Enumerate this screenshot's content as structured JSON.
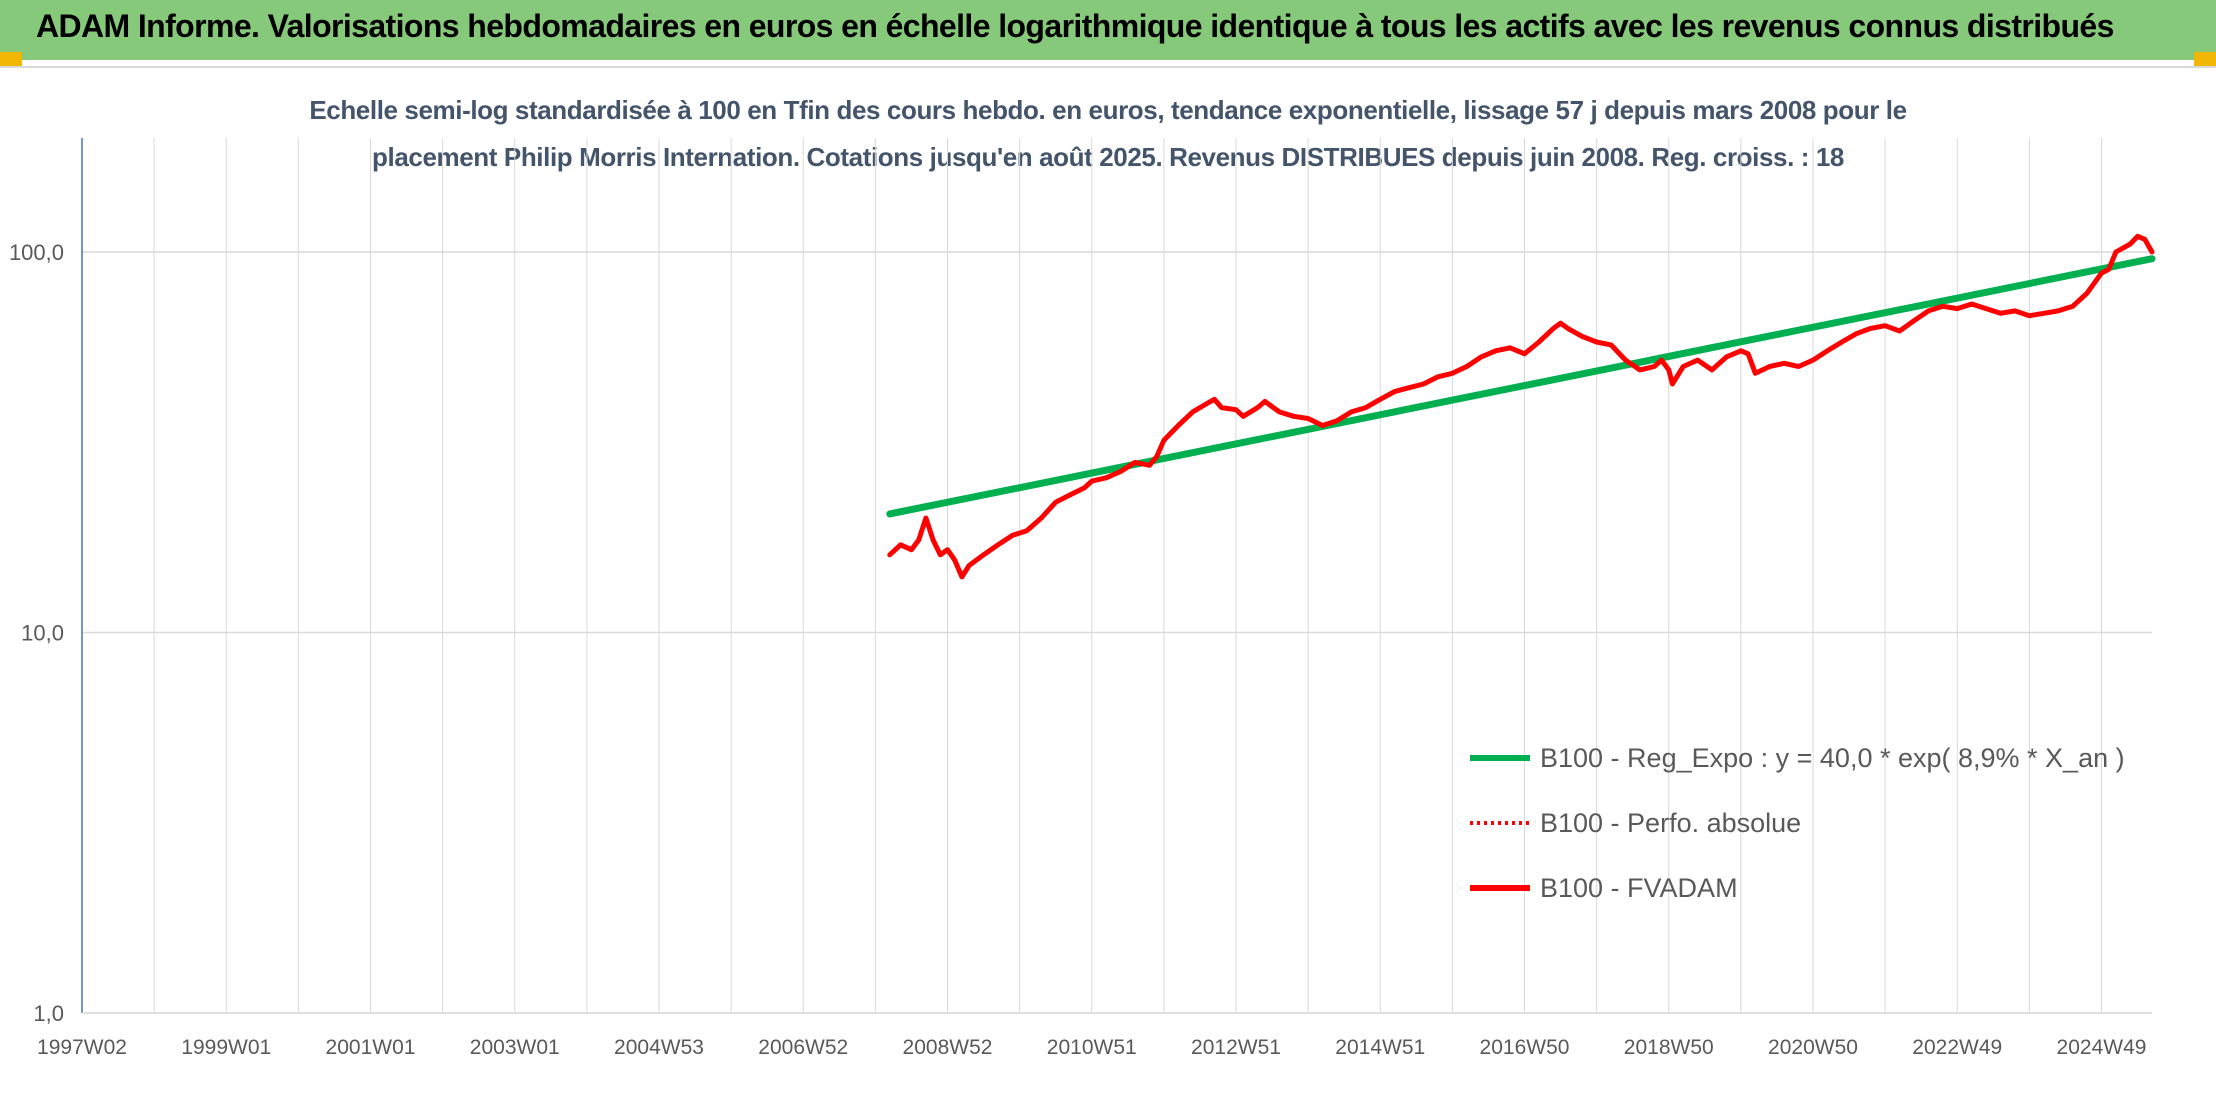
{
  "header": {
    "title": "ADAM Informe. Valorisations hebdomadaires en euros en échelle logarithmique identique à tous les actifs avec les revenus connus distribués"
  },
  "chart_data": {
    "type": "line",
    "title_lines": [
      "Echelle semi-log standardisée à 100 en Tfin des cours hebdo. en euros, tendance exponentielle, lissage 57 j depuis mars 2008 pour le",
      "placement Philip Morris Internation. Cotations jusqu'en août 2025. Revenus DISTRIBUES depuis juin 2008. Reg. croiss. : 18"
    ],
    "y_scale": "log",
    "ylim": [
      1,
      200
    ],
    "y_ticks": [
      {
        "value": 1,
        "label": "1,0"
      },
      {
        "value": 10,
        "label": "10,0"
      },
      {
        "value": 100,
        "label": "100,0"
      }
    ],
    "xlim": [
      1997.0,
      2025.7
    ],
    "x_ticks": [
      {
        "value": 1997.0,
        "label": "1997W02"
      },
      {
        "value": 1999.0,
        "label": "1999W01"
      },
      {
        "value": 2001.0,
        "label": "2001W01"
      },
      {
        "value": 2003.0,
        "label": "2003W01"
      },
      {
        "value": 2005.0,
        "label": "2004W53"
      },
      {
        "value": 2007.0,
        "label": "2006W52"
      },
      {
        "value": 2009.0,
        "label": "2008W52"
      },
      {
        "value": 2011.0,
        "label": "2010W51"
      },
      {
        "value": 2013.0,
        "label": "2012W51"
      },
      {
        "value": 2015.0,
        "label": "2014W51"
      },
      {
        "value": 2017.0,
        "label": "2016W50"
      },
      {
        "value": 2019.0,
        "label": "2018W50"
      },
      {
        "value": 2021.0,
        "label": "2020W50"
      },
      {
        "value": 2023.0,
        "label": "2022W49"
      },
      {
        "value": 2025.0,
        "label": "2024W49"
      }
    ],
    "x_gridlines": [
      1997.0,
      1998.0,
      1999.0,
      2000.0,
      2001.0,
      2002.0,
      2003.0,
      2004.0,
      2005.0,
      2006.0,
      2007.0,
      2008.0,
      2009.0,
      2010.0,
      2011.0,
      2012.0,
      2013.0,
      2014.0,
      2015.0,
      2016.0,
      2017.0,
      2018.0,
      2019.0,
      2020.0,
      2021.0,
      2022.0,
      2023.0,
      2024.0,
      2025.0
    ],
    "y_gridlines": [
      1,
      10,
      100
    ],
    "legend_position": "bottom-right",
    "series": [
      {
        "name": "B100 - Reg_Expo : y = 40,0 * exp( 8,9% *  X_an )",
        "color": "#00b050",
        "style": "solid",
        "points": [
          [
            2008.2,
            20.5
          ],
          [
            2025.7,
            96
          ]
        ]
      },
      {
        "name": "B100 - Perfo. absolue",
        "color": "#ff0000",
        "style": "dotted",
        "points": []
      },
      {
        "name": "B100 - FVADAM",
        "color": "#ff0000",
        "style": "solid",
        "points": [
          [
            2008.2,
            16
          ],
          [
            2008.35,
            17
          ],
          [
            2008.5,
            16.5
          ],
          [
            2008.6,
            17.5
          ],
          [
            2008.7,
            20
          ],
          [
            2008.8,
            17.5
          ],
          [
            2008.9,
            16
          ],
          [
            2009.0,
            16.5
          ],
          [
            2009.1,
            15.5
          ],
          [
            2009.2,
            14
          ],
          [
            2009.3,
            15
          ],
          [
            2009.5,
            16
          ],
          [
            2009.7,
            17
          ],
          [
            2009.9,
            18
          ],
          [
            2010.1,
            18.5
          ],
          [
            2010.3,
            20
          ],
          [
            2010.5,
            22
          ],
          [
            2010.7,
            23
          ],
          [
            2010.9,
            24
          ],
          [
            2011.0,
            25
          ],
          [
            2011.2,
            25.5
          ],
          [
            2011.4,
            26.5
          ],
          [
            2011.6,
            28
          ],
          [
            2011.8,
            27.5
          ],
          [
            2011.9,
            29
          ],
          [
            2012.0,
            32
          ],
          [
            2012.2,
            35
          ],
          [
            2012.4,
            38
          ],
          [
            2012.6,
            40
          ],
          [
            2012.7,
            41
          ],
          [
            2012.8,
            39
          ],
          [
            2013.0,
            38.5
          ],
          [
            2013.1,
            37
          ],
          [
            2013.3,
            39
          ],
          [
            2013.4,
            40.5
          ],
          [
            2013.6,
            38
          ],
          [
            2013.8,
            37
          ],
          [
            2014.0,
            36.5
          ],
          [
            2014.2,
            35
          ],
          [
            2014.4,
            36
          ],
          [
            2014.6,
            38
          ],
          [
            2014.8,
            39
          ],
          [
            2015.0,
            41
          ],
          [
            2015.2,
            43
          ],
          [
            2015.4,
            44
          ],
          [
            2015.6,
            45
          ],
          [
            2015.8,
            47
          ],
          [
            2016.0,
            48
          ],
          [
            2016.2,
            50
          ],
          [
            2016.4,
            53
          ],
          [
            2016.6,
            55
          ],
          [
            2016.8,
            56
          ],
          [
            2017.0,
            54
          ],
          [
            2017.2,
            58
          ],
          [
            2017.4,
            63
          ],
          [
            2017.5,
            65
          ],
          [
            2017.6,
            63
          ],
          [
            2017.8,
            60
          ],
          [
            2018.0,
            58
          ],
          [
            2018.2,
            57
          ],
          [
            2018.4,
            52
          ],
          [
            2018.6,
            49
          ],
          [
            2018.8,
            50
          ],
          [
            2018.9,
            52
          ],
          [
            2019.0,
            49
          ],
          [
            2019.05,
            45
          ],
          [
            2019.2,
            50
          ],
          [
            2019.4,
            52
          ],
          [
            2019.6,
            49
          ],
          [
            2019.8,
            53
          ],
          [
            2020.0,
            55
          ],
          [
            2020.1,
            54
          ],
          [
            2020.2,
            48
          ],
          [
            2020.4,
            50
          ],
          [
            2020.6,
            51
          ],
          [
            2020.8,
            50
          ],
          [
            2021.0,
            52
          ],
          [
            2021.2,
            55
          ],
          [
            2021.4,
            58
          ],
          [
            2021.6,
            61
          ],
          [
            2021.8,
            63
          ],
          [
            2022.0,
            64
          ],
          [
            2022.2,
            62
          ],
          [
            2022.4,
            66
          ],
          [
            2022.6,
            70
          ],
          [
            2022.8,
            72
          ],
          [
            2023.0,
            71
          ],
          [
            2023.2,
            73
          ],
          [
            2023.4,
            71
          ],
          [
            2023.6,
            69
          ],
          [
            2023.8,
            70
          ],
          [
            2024.0,
            68
          ],
          [
            2024.2,
            69
          ],
          [
            2024.4,
            70
          ],
          [
            2024.6,
            72
          ],
          [
            2024.8,
            78
          ],
          [
            2025.0,
            88
          ],
          [
            2025.1,
            90
          ],
          [
            2025.2,
            100
          ],
          [
            2025.4,
            105
          ],
          [
            2025.5,
            110
          ],
          [
            2025.6,
            108
          ],
          [
            2025.7,
            100
          ]
        ]
      }
    ]
  }
}
